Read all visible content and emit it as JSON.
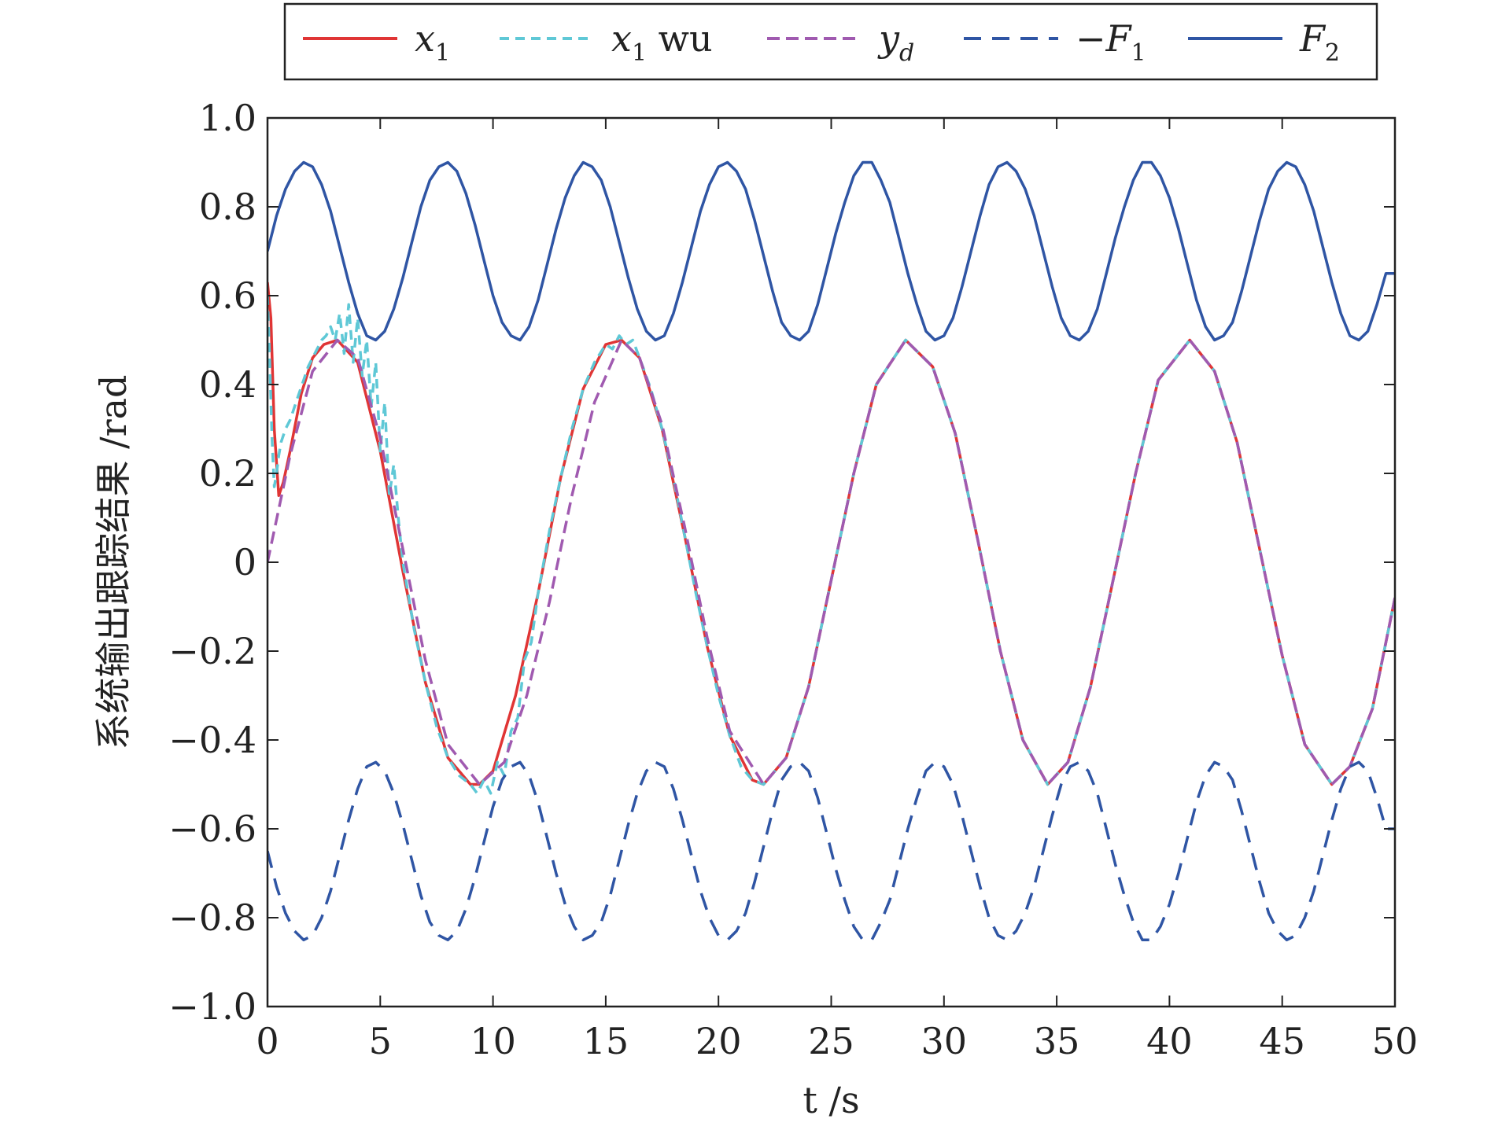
{
  "chart_data": {
    "type": "line",
    "title": "",
    "xlabel": "t /s",
    "ylabel": "系统输出跟踪结果 /rad",
    "xlim": [
      0,
      50
    ],
    "ylim": [
      -1.0,
      1.0
    ],
    "xticks": [
      0,
      5,
      10,
      15,
      20,
      25,
      30,
      35,
      40,
      45,
      50
    ],
    "xtick_labels": [
      "0",
      "5",
      "10",
      "15",
      "20",
      "25",
      "30",
      "35",
      "40",
      "45",
      "50"
    ],
    "yticks": [
      -1.0,
      -0.8,
      -0.6,
      -0.4,
      -0.2,
      0,
      0.2,
      0.4,
      0.6,
      0.8,
      1.0
    ],
    "ytick_labels": [
      "−1.0",
      "−0.8",
      "−0.6",
      "−0.4",
      "−0.2",
      "0",
      "0.2",
      "0.4",
      "0.6",
      "0.8",
      "1.0"
    ],
    "grid": false,
    "legend_position": "top, outside, horizontal",
    "series": [
      {
        "name": "x1",
        "legend": {
          "main": "x",
          "sub": "1",
          "suffix": "",
          "prefix": ""
        },
        "color": "#e03535",
        "dash": "solid",
        "x": [
          0,
          0.15,
          0.3,
          0.5,
          0.7,
          1.0,
          1.5,
          2.0,
          2.5,
          3.1,
          4.0,
          5.0,
          6.0,
          7.0,
          8.0,
          9.0,
          9.4,
          10.0,
          11.0,
          12.0,
          13.0,
          14.0,
          15.0,
          15.7,
          16.5,
          17.5,
          18.5,
          19.5,
          20.5,
          21.5,
          22.0,
          23.0,
          24.0,
          25.0,
          26.0,
          27.0,
          28.3,
          29.5,
          30.5,
          31.5,
          32.5,
          33.5,
          34.6,
          35.5,
          36.5,
          37.5,
          38.5,
          39.5,
          40.9,
          42.0,
          43.0,
          44.0,
          45.0,
          46.0,
          47.2,
          48.0,
          49.0,
          50.0
        ],
        "y": [
          0.63,
          0.55,
          0.3,
          0.15,
          0.18,
          0.25,
          0.38,
          0.46,
          0.49,
          0.5,
          0.45,
          0.25,
          -0.02,
          -0.27,
          -0.44,
          -0.5,
          -0.5,
          -0.47,
          -0.3,
          -0.07,
          0.19,
          0.39,
          0.49,
          0.5,
          0.46,
          0.3,
          0.06,
          -0.19,
          -0.39,
          -0.49,
          -0.5,
          -0.44,
          -0.28,
          -0.04,
          0.2,
          0.4,
          0.5,
          0.44,
          0.29,
          0.05,
          -0.2,
          -0.4,
          -0.5,
          -0.45,
          -0.28,
          -0.04,
          0.2,
          0.41,
          0.5,
          0.43,
          0.27,
          0.03,
          -0.21,
          -0.41,
          -0.5,
          -0.46,
          -0.33,
          -0.08
        ]
      },
      {
        "name": "x1 wu",
        "legend": {
          "main": "x",
          "sub": "1",
          "suffix": " wu",
          "prefix": ""
        },
        "color": "#5fc8d6",
        "dash": "12,8",
        "x": [
          0,
          0.1,
          0.2,
          0.3,
          0.4,
          0.5,
          0.6,
          0.8,
          1.0,
          1.2,
          1.4,
          1.6,
          1.8,
          2.0,
          2.2,
          2.4,
          2.6,
          2.8,
          3.0,
          3.2,
          3.4,
          3.6,
          3.8,
          4.0,
          4.2,
          4.4,
          4.6,
          4.8,
          5.0,
          5.2,
          5.4,
          5.6,
          5.8,
          6.0,
          6.5,
          7.0,
          7.5,
          8.0,
          8.5,
          9.0,
          9.3,
          9.6,
          9.9,
          10.2,
          10.5,
          10.8,
          11.1,
          11.4,
          11.7,
          12.0,
          12.5,
          13.0,
          13.5,
          14.0,
          14.5,
          15.0,
          15.3,
          15.6,
          15.9,
          16.2,
          16.5,
          17.0,
          17.5,
          18.0,
          18.5,
          19.0,
          19.5,
          20.0,
          20.5,
          21.0,
          21.5,
          22.0,
          23.0,
          24.0,
          25.0,
          26.0,
          27.0,
          28.3,
          29.5,
          30.5,
          31.5,
          32.5,
          33.5,
          34.6,
          35.5,
          36.5,
          37.5,
          38.5,
          39.5,
          40.9,
          42.0,
          43.0,
          44.0,
          45.0,
          46.0,
          47.2,
          48.0,
          49.0,
          50.0
        ],
        "y": [
          0.6,
          0.45,
          0.28,
          0.17,
          0.2,
          0.24,
          0.27,
          0.3,
          0.32,
          0.35,
          0.38,
          0.41,
          0.44,
          0.46,
          0.48,
          0.5,
          0.51,
          0.53,
          0.5,
          0.56,
          0.47,
          0.58,
          0.45,
          0.55,
          0.42,
          0.5,
          0.35,
          0.45,
          0.25,
          0.36,
          0.15,
          0.22,
          0.1,
          0.0,
          -0.15,
          -0.27,
          -0.37,
          -0.44,
          -0.48,
          -0.5,
          -0.52,
          -0.49,
          -0.52,
          -0.45,
          -0.48,
          -0.38,
          -0.35,
          -0.22,
          -0.18,
          -0.07,
          0.07,
          0.19,
          0.3,
          0.39,
          0.45,
          0.49,
          0.48,
          0.51,
          0.49,
          0.5,
          0.46,
          0.39,
          0.3,
          0.19,
          0.06,
          -0.07,
          -0.19,
          -0.3,
          -0.39,
          -0.46,
          -0.49,
          -0.5,
          -0.44,
          -0.28,
          -0.04,
          0.2,
          0.4,
          0.5,
          0.44,
          0.29,
          0.05,
          -0.2,
          -0.4,
          -0.5,
          -0.45,
          -0.28,
          -0.04,
          0.2,
          0.41,
          0.5,
          0.43,
          0.27,
          0.03,
          -0.21,
          -0.41,
          -0.5,
          -0.46,
          -0.33,
          -0.08
        ]
      },
      {
        "name": "yd",
        "legend": {
          "main": "y",
          "sub": "d",
          "suffix": "",
          "prefix": "",
          "sub_italic": true
        },
        "color": "#a05ab0",
        "dash": "16,8",
        "x": [
          0,
          1.0,
          2.0,
          3.1,
          4.0,
          5.0,
          6.0,
          7.0,
          8.0,
          9.4,
          10.5,
          11.5,
          12.5,
          13.5,
          14.5,
          15.7,
          16.5,
          17.5,
          18.5,
          19.5,
          20.5,
          22.0,
          23.0,
          24.0,
          25.0,
          26.0,
          27.0,
          28.3,
          29.5,
          30.5,
          31.5,
          32.5,
          33.5,
          34.6,
          35.5,
          36.5,
          37.5,
          38.5,
          39.5,
          40.9,
          42.0,
          43.0,
          44.0,
          45.0,
          46.0,
          47.2,
          48.0,
          49.0,
          50.0
        ],
        "y": [
          0,
          0.24,
          0.43,
          0.5,
          0.46,
          0.28,
          0.03,
          -0.22,
          -0.41,
          -0.5,
          -0.45,
          -0.3,
          -0.09,
          0.15,
          0.36,
          0.5,
          0.46,
          0.31,
          0.08,
          -0.17,
          -0.38,
          -0.5,
          -0.44,
          -0.28,
          -0.04,
          0.2,
          0.4,
          0.5,
          0.44,
          0.29,
          0.05,
          -0.2,
          -0.4,
          -0.5,
          -0.45,
          -0.28,
          -0.04,
          0.2,
          0.41,
          0.5,
          0.43,
          0.27,
          0.03,
          -0.21,
          -0.41,
          -0.5,
          -0.46,
          -0.33,
          -0.08
        ]
      },
      {
        "name": "−F1",
        "legend": {
          "main": "F",
          "sub": "1",
          "suffix": "",
          "prefix": "−"
        },
        "color": "#2f55a4",
        "dash": "22,14",
        "x": [
          0,
          0.4,
          0.8,
          1.2,
          1.6,
          2.0,
          2.4,
          2.8,
          3.2,
          3.6,
          4.0,
          4.4,
          4.8,
          5.2,
          5.6,
          6.0,
          6.4,
          6.8,
          7.2,
          7.6,
          8.0,
          8.4,
          8.8,
          9.2,
          9.6,
          10.0,
          10.4,
          10.8,
          11.2,
          11.6,
          12.0,
          12.4,
          12.8,
          13.2,
          13.6,
          14.0,
          14.4,
          14.8,
          15.2,
          15.6,
          16.0,
          16.4,
          16.8,
          17.2,
          17.6,
          18.0,
          18.4,
          18.8,
          19.2,
          19.6,
          20.0,
          20.4,
          20.8,
          21.2,
          21.6,
          22.0,
          22.4,
          22.8,
          23.2,
          23.6,
          24.0,
          24.4,
          24.8,
          25.2,
          25.6,
          26.0,
          26.4,
          26.8,
          27.2,
          27.6,
          28.0,
          28.4,
          28.8,
          29.2,
          29.6,
          30.0,
          30.4,
          30.8,
          31.2,
          31.6,
          32.0,
          32.4,
          32.8,
          33.2,
          33.6,
          34.0,
          34.4,
          34.8,
          35.2,
          35.6,
          36.0,
          36.4,
          36.8,
          37.2,
          37.6,
          38.0,
          38.4,
          38.8,
          39.2,
          39.6,
          40.0,
          40.4,
          40.8,
          41.2,
          41.6,
          42.0,
          42.4,
          42.8,
          43.2,
          43.6,
          44.0,
          44.4,
          44.8,
          45.2,
          45.6,
          46.0,
          46.4,
          46.8,
          47.2,
          47.6,
          48.0,
          48.4,
          48.8,
          49.2,
          49.6,
          50.0
        ],
        "y": [
          -0.65,
          -0.73,
          -0.79,
          -0.83,
          -0.85,
          -0.84,
          -0.8,
          -0.74,
          -0.66,
          -0.58,
          -0.51,
          -0.46,
          -0.45,
          -0.47,
          -0.52,
          -0.59,
          -0.67,
          -0.75,
          -0.81,
          -0.84,
          -0.85,
          -0.83,
          -0.78,
          -0.71,
          -0.63,
          -0.55,
          -0.49,
          -0.46,
          -0.45,
          -0.48,
          -0.54,
          -0.62,
          -0.7,
          -0.77,
          -0.82,
          -0.85,
          -0.84,
          -0.81,
          -0.75,
          -0.67,
          -0.59,
          -0.52,
          -0.47,
          -0.45,
          -0.46,
          -0.51,
          -0.58,
          -0.66,
          -0.74,
          -0.8,
          -0.84,
          -0.85,
          -0.83,
          -0.79,
          -0.72,
          -0.64,
          -0.56,
          -0.49,
          -0.46,
          -0.45,
          -0.47,
          -0.53,
          -0.61,
          -0.69,
          -0.76,
          -0.82,
          -0.85,
          -0.85,
          -0.81,
          -0.76,
          -0.68,
          -0.6,
          -0.53,
          -0.47,
          -0.45,
          -0.46,
          -0.5,
          -0.57,
          -0.65,
          -0.73,
          -0.8,
          -0.84,
          -0.85,
          -0.83,
          -0.79,
          -0.73,
          -0.65,
          -0.57,
          -0.5,
          -0.46,
          -0.45,
          -0.47,
          -0.52,
          -0.6,
          -0.68,
          -0.75,
          -0.81,
          -0.85,
          -0.85,
          -0.82,
          -0.77,
          -0.7,
          -0.62,
          -0.54,
          -0.48,
          -0.45,
          -0.46,
          -0.49,
          -0.56,
          -0.64,
          -0.72,
          -0.79,
          -0.83,
          -0.85,
          -0.84,
          -0.8,
          -0.74,
          -0.66,
          -0.58,
          -0.51,
          -0.46,
          -0.45,
          -0.47,
          -0.53,
          -0.6,
          -0.6
        ]
      },
      {
        "name": "F2",
        "legend": {
          "main": "F",
          "sub": "2",
          "suffix": "",
          "prefix": ""
        },
        "color": "#2f55a4",
        "dash": "solid",
        "x": [
          0,
          0.4,
          0.8,
          1.2,
          1.6,
          2.0,
          2.4,
          2.8,
          3.2,
          3.6,
          4.0,
          4.4,
          4.8,
          5.2,
          5.6,
          6.0,
          6.4,
          6.8,
          7.2,
          7.6,
          8.0,
          8.4,
          8.8,
          9.2,
          9.6,
          10.0,
          10.4,
          10.8,
          11.2,
          11.6,
          12.0,
          12.4,
          12.8,
          13.2,
          13.6,
          14.0,
          14.4,
          14.8,
          15.2,
          15.6,
          16.0,
          16.4,
          16.8,
          17.2,
          17.6,
          18.0,
          18.4,
          18.8,
          19.2,
          19.6,
          20.0,
          20.4,
          20.8,
          21.2,
          21.6,
          22.0,
          22.4,
          22.8,
          23.2,
          23.6,
          24.0,
          24.4,
          24.8,
          25.2,
          25.6,
          26.0,
          26.4,
          26.8,
          27.2,
          27.6,
          28.0,
          28.4,
          28.8,
          29.2,
          29.6,
          30.0,
          30.4,
          30.8,
          31.2,
          31.6,
          32.0,
          32.4,
          32.8,
          33.2,
          33.6,
          34.0,
          34.4,
          34.8,
          35.2,
          35.6,
          36.0,
          36.4,
          36.8,
          37.2,
          37.6,
          38.0,
          38.4,
          38.8,
          39.2,
          39.6,
          40.0,
          40.4,
          40.8,
          41.2,
          41.6,
          42.0,
          42.4,
          42.8,
          43.2,
          43.6,
          44.0,
          44.4,
          44.8,
          45.2,
          45.6,
          46.0,
          46.4,
          46.8,
          47.2,
          47.6,
          48.0,
          48.4,
          48.8,
          49.2,
          49.6,
          50.0
        ],
        "y": [
          0.7,
          0.78,
          0.84,
          0.88,
          0.9,
          0.89,
          0.85,
          0.79,
          0.71,
          0.63,
          0.56,
          0.51,
          0.5,
          0.52,
          0.57,
          0.64,
          0.72,
          0.8,
          0.86,
          0.89,
          0.9,
          0.88,
          0.83,
          0.76,
          0.68,
          0.6,
          0.54,
          0.51,
          0.5,
          0.53,
          0.59,
          0.67,
          0.75,
          0.82,
          0.87,
          0.9,
          0.89,
          0.86,
          0.8,
          0.72,
          0.64,
          0.57,
          0.52,
          0.5,
          0.51,
          0.56,
          0.63,
          0.71,
          0.79,
          0.85,
          0.89,
          0.9,
          0.88,
          0.84,
          0.77,
          0.69,
          0.61,
          0.54,
          0.51,
          0.5,
          0.52,
          0.58,
          0.66,
          0.74,
          0.81,
          0.87,
          0.9,
          0.9,
          0.86,
          0.81,
          0.73,
          0.65,
          0.58,
          0.52,
          0.5,
          0.51,
          0.55,
          0.62,
          0.7,
          0.78,
          0.85,
          0.89,
          0.9,
          0.88,
          0.84,
          0.78,
          0.7,
          0.62,
          0.55,
          0.51,
          0.5,
          0.52,
          0.57,
          0.65,
          0.73,
          0.8,
          0.86,
          0.9,
          0.9,
          0.87,
          0.82,
          0.75,
          0.67,
          0.59,
          0.53,
          0.5,
          0.51,
          0.54,
          0.61,
          0.69,
          0.77,
          0.84,
          0.88,
          0.9,
          0.89,
          0.85,
          0.79,
          0.71,
          0.63,
          0.56,
          0.51,
          0.5,
          0.52,
          0.58,
          0.65,
          0.65
        ]
      }
    ]
  }
}
